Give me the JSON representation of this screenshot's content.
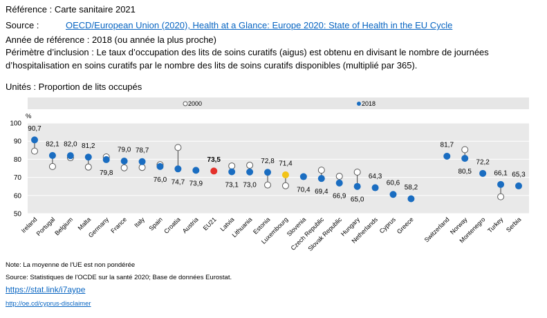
{
  "header": {
    "reference": "Référence : Carte sanitaire 2021",
    "source_label": "Source :",
    "source_link": "OECD/European Union (2020), Health at a Glance: Europe 2020: State of Health in the EU Cycle",
    "reference_year": "Année de référence : 2018 (ou année la plus proche)",
    "scope_line1": "Périmètre d’inclusion : Le taux d’occupation des lits de soins curatifs (aigus) est obtenu en divisant le nombre de journées",
    "scope_line2": "d’hospitalisation en soins curatifs par le nombre des lits de soins curatifs disponibles (multiplié par 365).",
    "units": "Unités : Proportion de lits occupés"
  },
  "chart_data": {
    "type": "scatter",
    "ylabel": "%",
    "ylim": [
      50,
      100
    ],
    "yticks": [
      100,
      90,
      80,
      70,
      60,
      50
    ],
    "grid": true,
    "legend_position": "top",
    "categories": [
      "Ireland",
      "Portugal",
      "Belgium",
      "Malta",
      "Germany",
      "France",
      "Italy",
      "Spain",
      "Croatia",
      "Austria",
      "EU21",
      "Latvia",
      "Lithuania",
      "Estonia",
      "Luxembourg",
      "Slovenia",
      "Czech Republic",
      "Slovak Republic",
      "Hungary",
      "Netherlands",
      "Cyprus",
      "Greece",
      "Switzerland",
      "Norway",
      "Montenegro",
      "Turkey",
      "Serbia"
    ],
    "series": [
      {
        "name": "2000",
        "values": [
          84.5,
          76.0,
          80.9,
          75.7,
          81.3,
          75.3,
          75.5,
          77.0,
          86.5,
          null,
          null,
          76.3,
          76.7,
          65.8,
          65.4,
          null,
          74.0,
          70.6,
          72.9,
          null,
          null,
          null,
          null,
          85.3,
          null,
          59.3,
          null
        ]
      },
      {
        "name": "2018",
        "values": [
          90.7,
          82.1,
          82.0,
          81.2,
          79.8,
          79.0,
          78.7,
          76.0,
          74.7,
          73.9,
          73.5,
          73.1,
          73.0,
          72.8,
          71.4,
          70.4,
          69.4,
          66.9,
          65.0,
          64.3,
          60.6,
          58.2,
          81.7,
          80.5,
          72.2,
          66.1,
          65.3
        ]
      }
    ],
    "data_labels": [
      "90,7",
      "82,1",
      "82,0",
      "81,2",
      "79,8",
      "79,0",
      "78,7",
      "76,0",
      "74,7",
      "73,9",
      "73,5",
      "73,1",
      "73,0",
      "72,8",
      "71,4",
      "70,4",
      "69,4",
      "66,9",
      "65,0",
      "64,3",
      "60,6",
      "58,2",
      "81,7",
      "80,5",
      "72,2",
      "66,1",
      "65,3"
    ],
    "colors": {
      "2018": "#1a6dc1",
      "2000_fill": "#ffffff",
      "2000_stroke": "#595959",
      "connector": "#3f3f3f",
      "EU21": "#e4312b",
      "Luxembourg": "#f2c318",
      "plot_background": "#e9e9e9",
      "legend_background": "#e6e6e6",
      "gridline": "#ffffff"
    }
  },
  "footer": {
    "note": "Note: La moyenne de l'UE est non pondérée",
    "source": "Source: Statistiques de l'OCDE sur la santé 2020; Base de données Eurostat.",
    "statlink": "https://stat.link/i7aype",
    "disclaimer": "http://oe.cd/cyprus-disclaimer"
  },
  "theme": {
    "link": "#0563c1"
  }
}
